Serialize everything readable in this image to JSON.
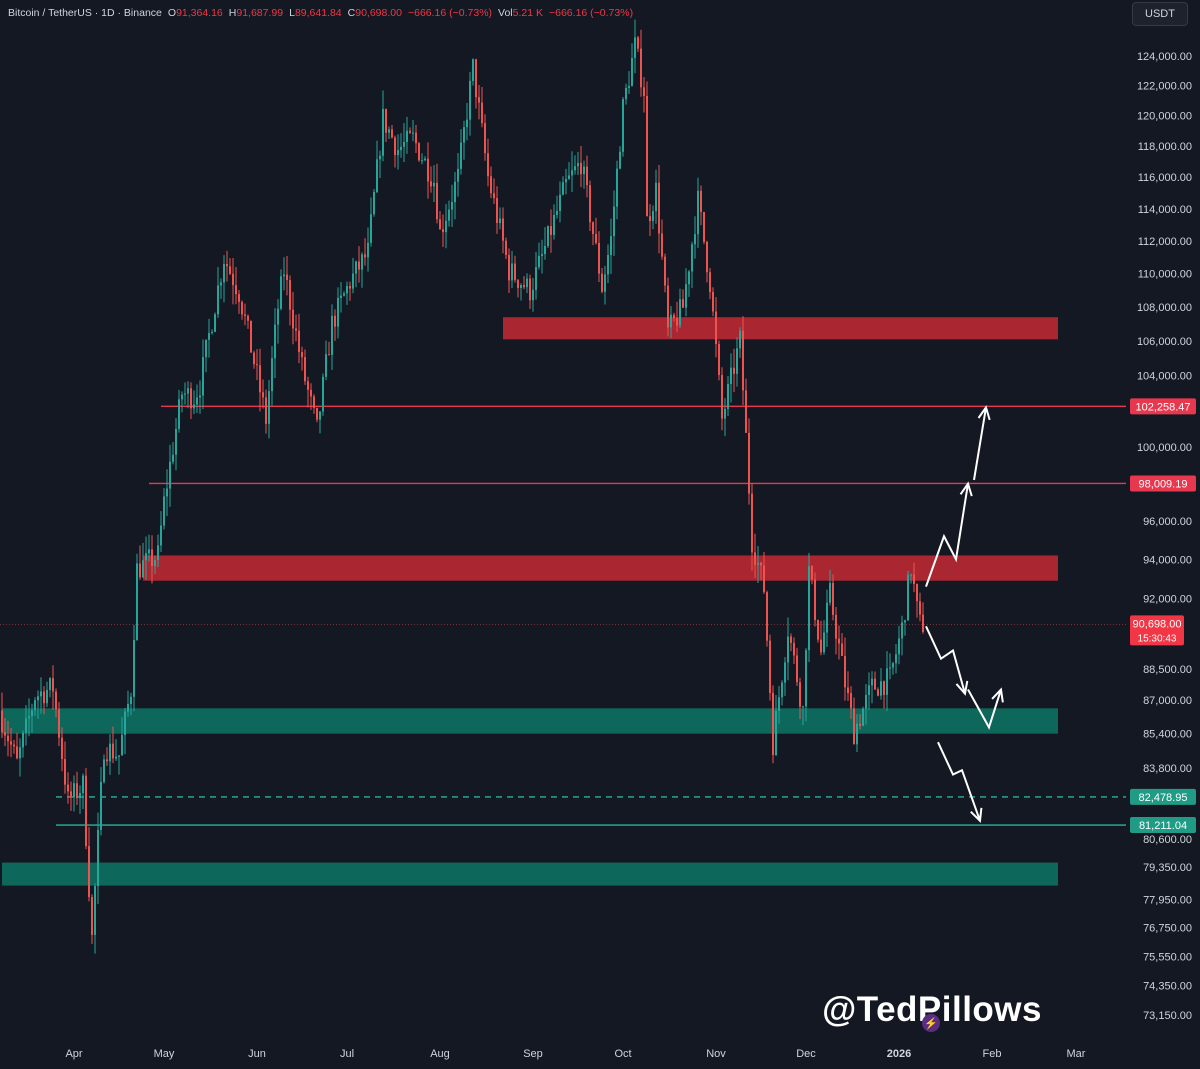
{
  "header": {
    "symbol": "Bitcoin / TetherUS · 1D · Binance",
    "open_label": "O",
    "open": "91,364.16",
    "high_label": "H",
    "high": "91,687.99",
    "low_label": "L",
    "low": "89,641.84",
    "close_label": "C",
    "close": "90,698.00",
    "change": "−666.16 (−0.73%)",
    "vol_label": "Vol",
    "vol": "5.21 K",
    "change2": "−666.16 (−0.73%)",
    "currency": "USDT"
  },
  "watermark": "@TedPillows",
  "colors": {
    "background": "#141822",
    "up": "#26a69a",
    "down": "#ef5350",
    "resistance": "#b22833",
    "support": "#0e6b5f",
    "line_red": "#e8384f",
    "line_green": "#2bb39c",
    "arrow": "#ffffff"
  },
  "chart_data": {
    "type": "candlestick",
    "symbol": "Bitcoin / TetherUS",
    "interval": "1D",
    "exchange": "Binance",
    "y_scale": "log",
    "ylim": [
      72500,
      126500
    ],
    "x_range": [
      "2025-03-08",
      "2026-03-14"
    ],
    "y_ticks": [
      "124,000.00",
      "122,000.00",
      "120,000.00",
      "118,000.00",
      "116,000.00",
      "114,000.00",
      "112,000.00",
      "110,000.00",
      "108,000.00",
      "106,000.00",
      "104,000.00",
      "100,000.00",
      "96,000.00",
      "94,000.00",
      "92,000.00",
      "88,500.00",
      "87,000.00",
      "85,400.00",
      "83,800.00",
      "80,600.00",
      "79,350.00",
      "77,950.00",
      "76,750.00",
      "75,550.00",
      "74,350.00",
      "73,150.00"
    ],
    "x_ticks": [
      {
        "date": "2025-04-01",
        "label": "Apr"
      },
      {
        "date": "2025-05-01",
        "label": "May"
      },
      {
        "date": "2025-06-01",
        "label": "Jun"
      },
      {
        "date": "2025-07-01",
        "label": "Jul"
      },
      {
        "date": "2025-08-01",
        "label": "Aug"
      },
      {
        "date": "2025-09-01",
        "label": "Sep"
      },
      {
        "date": "2025-10-01",
        "label": "Oct"
      },
      {
        "date": "2025-11-01",
        "label": "Nov"
      },
      {
        "date": "2025-12-01",
        "label": "Dec"
      },
      {
        "date": "2026-01-01",
        "label": "2026"
      },
      {
        "date": "2026-02-01",
        "label": "Feb"
      },
      {
        "date": "2026-03-01",
        "label": "Mar"
      }
    ],
    "anchors": [
      [
        "2025-03-08",
        86500
      ],
      [
        "2025-03-14",
        84000
      ],
      [
        "2025-03-20",
        87200
      ],
      [
        "2025-03-26",
        87600
      ],
      [
        "2025-03-31",
        82300
      ],
      [
        "2025-04-05",
        83000
      ],
      [
        "2025-04-08",
        76300
      ],
      [
        "2025-04-12",
        84800
      ],
      [
        "2025-04-17",
        84400
      ],
      [
        "2025-04-21",
        87500
      ],
      [
        "2025-04-23",
        93500
      ],
      [
        "2025-04-30",
        94200
      ],
      [
        "2025-05-02",
        97000
      ],
      [
        "2025-05-08",
        103000
      ],
      [
        "2025-05-12",
        102800
      ],
      [
        "2025-05-14",
        103500
      ],
      [
        "2025-05-22",
        111000
      ],
      [
        "2025-05-27",
        108900
      ],
      [
        "2025-06-05",
        101500
      ],
      [
        "2025-06-09",
        108000
      ],
      [
        "2025-06-11",
        110200
      ],
      [
        "2025-06-17",
        104500
      ],
      [
        "2025-06-22",
        100900
      ],
      [
        "2025-06-27",
        107000
      ],
      [
        "2025-07-03",
        109500
      ],
      [
        "2025-07-09",
        111300
      ],
      [
        "2025-07-14",
        119800
      ],
      [
        "2025-07-19",
        117800
      ],
      [
        "2025-07-24",
        118500
      ],
      [
        "2025-07-31",
        115800
      ],
      [
        "2025-08-02",
        112500
      ],
      [
        "2025-08-08",
        116000
      ],
      [
        "2025-08-13",
        123200
      ],
      [
        "2025-08-18",
        116000
      ],
      [
        "2025-08-25",
        110200
      ],
      [
        "2025-09-01",
        109000
      ],
      [
        "2025-09-05",
        111000
      ],
      [
        "2025-09-13",
        115500
      ],
      [
        "2025-09-18",
        117000
      ],
      [
        "2025-09-25",
        109200
      ],
      [
        "2025-09-28",
        112100
      ],
      [
        "2025-10-02",
        120500
      ],
      [
        "2025-10-06",
        124700
      ],
      [
        "2025-10-09",
        121700
      ],
      [
        "2025-10-10",
        113200
      ],
      [
        "2025-10-13",
        115200
      ],
      [
        "2025-10-17",
        106500
      ],
      [
        "2025-10-22",
        108000
      ],
      [
        "2025-10-27",
        114500
      ],
      [
        "2025-10-31",
        109500
      ],
      [
        "2025-11-04",
        101500
      ],
      [
        "2025-11-10",
        106000
      ],
      [
        "2025-11-14",
        95000
      ],
      [
        "2025-11-18",
        92500
      ],
      [
        "2025-11-21",
        85000
      ],
      [
        "2025-11-26",
        90500
      ],
      [
        "2025-12-01",
        86500
      ],
      [
        "2025-12-03",
        93400
      ],
      [
        "2025-12-07",
        89300
      ],
      [
        "2025-12-10",
        92200
      ],
      [
        "2025-12-15",
        87800
      ],
      [
        "2025-12-18",
        85500
      ],
      [
        "2025-12-24",
        87600
      ],
      [
        "2025-12-30",
        88000
      ],
      [
        "2026-01-03",
        90500
      ],
      [
        "2026-01-06",
        93600
      ],
      [
        "2026-01-08",
        91400
      ],
      [
        "2026-01-09",
        90698
      ]
    ],
    "last_price": "90,698.00",
    "countdown": "15:30:43",
    "zones": [
      {
        "type": "resistance",
        "x_from": "2025-08-22",
        "x_to": "2026-02-23",
        "y_from": 106100,
        "y_to": 107400
      },
      {
        "type": "resistance",
        "x_from": "2025-04-24",
        "x_to": "2026-02-23",
        "y_from": 92900,
        "y_to": 94200
      },
      {
        "type": "support",
        "x_from": "2025-03-08",
        "x_to": "2026-02-23",
        "y_from": 85400,
        "y_to": 86600
      },
      {
        "type": "support",
        "x_from": "2025-03-08",
        "x_to": "2026-02-23",
        "y_from": 78550,
        "y_to": 79550
      }
    ],
    "levels": [
      {
        "price": 102258.47,
        "label": "102,258.47",
        "x_from": "2025-04-30",
        "style": "solid",
        "color": "red"
      },
      {
        "price": 98009.19,
        "label": "98,009.19",
        "x_from": "2025-04-26",
        "style": "solid",
        "color": "red"
      },
      {
        "price": 82478.95,
        "label": "82,478.95",
        "x_from": "2025-03-26",
        "style": "dashed",
        "color": "green"
      },
      {
        "price": 81211.04,
        "label": "81,211.04",
        "x_from": "2025-03-26",
        "style": "solid",
        "color": "green"
      }
    ],
    "projections": [
      {
        "points": [
          [
            "2026-01-10",
            92600
          ],
          [
            "2026-01-16",
            95200
          ],
          [
            "2026-01-20",
            94000
          ],
          [
            "2026-01-24",
            98000
          ]
        ]
      },
      {
        "points": [
          [
            "2026-01-26",
            98200
          ],
          [
            "2026-01-30",
            102200
          ]
        ]
      },
      {
        "points": [
          [
            "2026-01-10",
            90600
          ],
          [
            "2026-01-15",
            89000
          ],
          [
            "2026-01-19",
            89400
          ],
          [
            "2026-01-23",
            87300
          ]
        ]
      },
      {
        "points": [
          [
            "2026-01-24",
            87500
          ],
          [
            "2026-01-31",
            85700
          ],
          [
            "2026-02-04",
            87500
          ]
        ]
      },
      {
        "points": [
          [
            "2026-01-14",
            85000
          ],
          [
            "2026-01-19",
            83500
          ],
          [
            "2026-01-22",
            83700
          ],
          [
            "2026-01-28",
            81400
          ]
        ]
      }
    ]
  }
}
